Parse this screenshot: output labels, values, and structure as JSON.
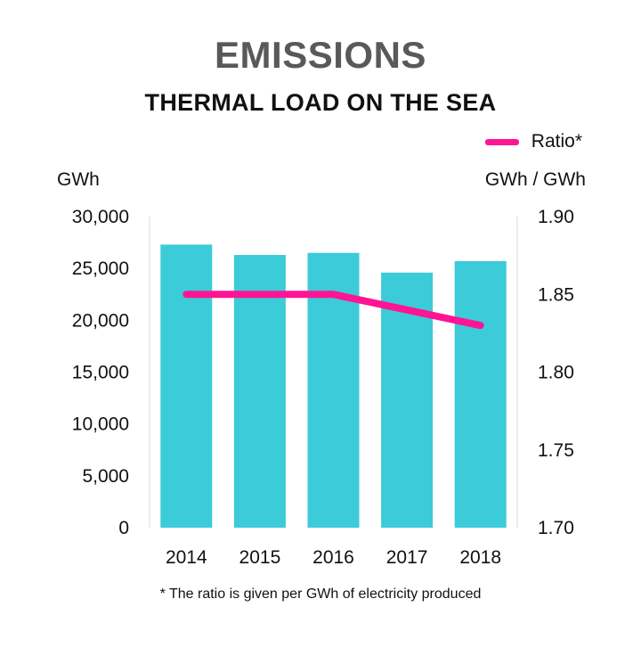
{
  "chart_data": {
    "type": "bar",
    "title": "EMISSIONS",
    "subtitle": "THERMAL LOAD ON THE SEA",
    "categories": [
      "2014",
      "2015",
      "2016",
      "2017",
      "2018"
    ],
    "series": [
      {
        "type": "bar",
        "values": [
          27300,
          26300,
          26500,
          24600,
          25700
        ],
        "color": "#3ccbd9",
        "axis": "left"
      },
      {
        "type": "line",
        "name": "Ratio*",
        "values": [
          1.85,
          1.85,
          1.85,
          1.84,
          1.83
        ],
        "color": "#ff1493",
        "axis": "right"
      }
    ],
    "y_left": {
      "unit": "GWh",
      "ylim": [
        0,
        30000
      ],
      "ticks": [
        "30,000",
        "25,000",
        "20,000",
        "15,000",
        "10,000",
        "5,000",
        "0"
      ]
    },
    "y_right": {
      "unit": "GWh / GWh",
      "ylim": [
        1.7,
        1.9
      ],
      "ticks": [
        "1.90",
        "1.85",
        "1.80",
        "1.75",
        "1.70"
      ]
    },
    "legend_position": "top-right",
    "grid": false,
    "footnote": "* The ratio is given per GWh of electricity produced"
  }
}
